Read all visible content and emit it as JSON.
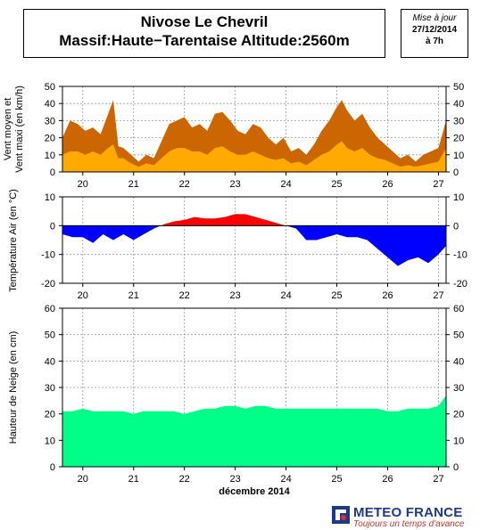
{
  "header": {
    "title_line1": "Nivose Le Chevril",
    "title_line2": "Massif:Haute−Tarentaise Altitude:2560m",
    "update_label": "Mise à jour",
    "update_date": "27/12/2014",
    "update_time": "à 7h"
  },
  "footer": {
    "month_label": "décembre 2014",
    "brand": "METEO FRANCE",
    "slogan": "Toujours un temps d'avance"
  },
  "colors": {
    "wind_max": "#cc6600",
    "wind_mean": "#ffaa00",
    "temp_pos": "#ff0000",
    "temp_neg": "#0000ff",
    "snow": "#00ff88"
  },
  "chart_data": [
    {
      "type": "area",
      "ylabel": "Vent moyen et Vent maxi (en km/h)",
      "ylim": [
        0,
        50
      ],
      "yticks": [
        0,
        10,
        20,
        30,
        40,
        50
      ],
      "xlim": [
        19.6,
        27.15
      ],
      "xticks": [
        20,
        21,
        22,
        23,
        24,
        25,
        26,
        27
      ],
      "grid": true,
      "series": [
        {
          "role": "max",
          "x": [
            19.6,
            19.75,
            19.9,
            20.05,
            20.2,
            20.35,
            20.5,
            20.6,
            20.7,
            20.8,
            20.95,
            21.1,
            21.25,
            21.4,
            21.55,
            21.7,
            21.85,
            22.0,
            22.15,
            22.3,
            22.45,
            22.6,
            22.75,
            22.9,
            23.05,
            23.2,
            23.35,
            23.5,
            23.65,
            23.8,
            23.95,
            24.1,
            24.25,
            24.4,
            24.55,
            24.7,
            24.85,
            25.0,
            25.1,
            25.2,
            25.35,
            25.5,
            25.65,
            25.8,
            25.95,
            26.1,
            26.25,
            26.4,
            26.55,
            26.7,
            26.85,
            27.0,
            27.15
          ],
          "values": [
            20,
            30,
            28,
            24,
            26,
            22,
            34,
            42,
            15,
            14,
            10,
            6,
            10,
            8,
            18,
            28,
            30,
            32,
            26,
            28,
            24,
            34,
            35,
            30,
            24,
            22,
            28,
            26,
            20,
            16,
            20,
            12,
            14,
            10,
            16,
            24,
            30,
            38,
            42,
            36,
            30,
            34,
            26,
            20,
            16,
            12,
            8,
            10,
            6,
            10,
            12,
            14,
            30
          ]
        },
        {
          "role": "mean",
          "x": [
            19.6,
            19.75,
            19.9,
            20.05,
            20.2,
            20.35,
            20.5,
            20.6,
            20.7,
            20.8,
            20.95,
            21.1,
            21.25,
            21.4,
            21.55,
            21.7,
            21.85,
            22.0,
            22.15,
            22.3,
            22.45,
            22.6,
            22.75,
            22.9,
            23.05,
            23.2,
            23.35,
            23.5,
            23.65,
            23.8,
            23.95,
            24.1,
            24.25,
            24.4,
            24.55,
            24.7,
            24.85,
            25.0,
            25.1,
            25.2,
            25.35,
            25.5,
            25.65,
            25.8,
            25.95,
            26.1,
            26.25,
            26.4,
            26.55,
            26.7,
            26.85,
            27.0,
            27.15
          ],
          "values": [
            10,
            12,
            12,
            10,
            12,
            10,
            14,
            16,
            8,
            8,
            5,
            3,
            5,
            4,
            8,
            12,
            14,
            14,
            12,
            12,
            10,
            14,
            15,
            12,
            10,
            10,
            12,
            10,
            8,
            7,
            8,
            5,
            6,
            4,
            7,
            10,
            12,
            16,
            18,
            14,
            12,
            14,
            10,
            8,
            7,
            5,
            3,
            4,
            3,
            4,
            5,
            6,
            14
          ]
        }
      ]
    },
    {
      "type": "area",
      "ylabel": "Température Air (en °C)",
      "ylim": [
        -20,
        10
      ],
      "yticks": [
        -20,
        -10,
        0,
        10
      ],
      "xlim": [
        19.6,
        27.15
      ],
      "xticks": [
        20,
        21,
        22,
        23,
        24,
        25,
        26,
        27
      ],
      "grid": true,
      "series": [
        {
          "role": "temperature",
          "x": [
            19.6,
            19.8,
            20.0,
            20.2,
            20.4,
            20.6,
            20.8,
            21.0,
            21.2,
            21.4,
            21.6,
            21.8,
            22.0,
            22.2,
            22.4,
            22.6,
            22.8,
            23.0,
            23.2,
            23.4,
            23.6,
            23.8,
            24.0,
            24.2,
            24.4,
            24.6,
            24.8,
            25.0,
            25.2,
            25.4,
            25.6,
            25.8,
            26.0,
            26.2,
            26.4,
            26.6,
            26.8,
            27.0,
            27.15
          ],
          "values": [
            -3,
            -4,
            -4,
            -6,
            -3,
            -5,
            -3,
            -5,
            -3,
            -1,
            0.5,
            1.5,
            2,
            3,
            2.5,
            2.5,
            3,
            4,
            4,
            3,
            2,
            1,
            0,
            -1,
            -5,
            -5,
            -4,
            -3,
            -4,
            -4,
            -5,
            -8,
            -11,
            -14,
            -12,
            -11,
            -13,
            -10,
            -7
          ]
        }
      ]
    },
    {
      "type": "area",
      "ylabel": "Hauteur de Neige (en cm)",
      "ylim": [
        0,
        60
      ],
      "yticks": [
        0,
        10,
        20,
        30,
        40,
        50,
        60
      ],
      "xlim": [
        19.6,
        27.15
      ],
      "xticks": [
        20,
        21,
        22,
        23,
        24,
        25,
        26,
        27
      ],
      "xlabel": "décembre 2014",
      "grid": true,
      "series": [
        {
          "role": "snow_depth",
          "x": [
            19.6,
            19.8,
            20.0,
            20.2,
            20.4,
            20.6,
            20.8,
            21.0,
            21.2,
            21.4,
            21.6,
            21.8,
            22.0,
            22.2,
            22.4,
            22.6,
            22.8,
            23.0,
            23.2,
            23.4,
            23.6,
            23.8,
            24.0,
            24.2,
            24.4,
            24.6,
            24.8,
            25.0,
            25.2,
            25.4,
            25.6,
            25.8,
            26.0,
            26.2,
            26.4,
            26.6,
            26.8,
            27.0,
            27.15
          ],
          "values": [
            21,
            21,
            22,
            21,
            21,
            21,
            21,
            20,
            21,
            21,
            21,
            21,
            20,
            21,
            22,
            22,
            23,
            23,
            22,
            23,
            23,
            22,
            22,
            22,
            22,
            22,
            22,
            22,
            22,
            22,
            22,
            22,
            21,
            21,
            22,
            22,
            22,
            23,
            27
          ]
        }
      ]
    }
  ]
}
